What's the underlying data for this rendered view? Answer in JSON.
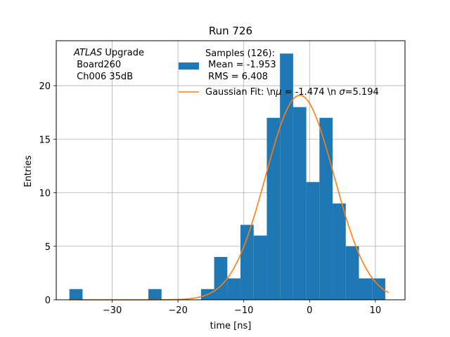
{
  "chart_data": {
    "type": "bar",
    "title": "Run 726",
    "xlabel": "time [ns]",
    "ylabel": "Entries",
    "xlim": [
      -38.5,
      14.5
    ],
    "ylim": [
      0,
      24.2
    ],
    "grid": true,
    "x_ticks": [
      -30,
      -20,
      -10,
      0,
      10
    ],
    "x_tick_labels": [
      "−30",
      "−20",
      "−10",
      "0",
      "10"
    ],
    "y_ticks": [
      0,
      5,
      10,
      15,
      20
    ],
    "y_tick_labels": [
      "0",
      "5",
      "10",
      "15",
      "20"
    ],
    "bin_width": 2.0,
    "bins": [
      {
        "x0": -36.5,
        "count": 1
      },
      {
        "x0": -24.5,
        "count": 1
      },
      {
        "x0": -16.5,
        "count": 1
      },
      {
        "x0": -14.5,
        "count": 1
      },
      {
        "x0": -12.5,
        "count": 2
      },
      {
        "x0": -10.5,
        "count": 7
      },
      {
        "x0": -8.5,
        "count": 6
      },
      {
        "x0": -6.5,
        "count": 17
      },
      {
        "x0": -4.5,
        "count": 23
      },
      {
        "x0": -2.5,
        "count": 18
      },
      {
        "x0": -0.5,
        "count": 11
      },
      {
        "x0": 1.5,
        "count": 17
      },
      {
        "x0": 3.5,
        "count": 9
      },
      {
        "x0": 5.5,
        "count": 5
      },
      {
        "x0": 7.5,
        "count": 2
      },
      {
        "x0": 9.5,
        "count": 2
      }
    ],
    "extra_bar": {
      "x0": -14.5,
      "count": 4
    },
    "fit": {
      "mu": -1.474,
      "sigma": 5.194,
      "amplitude": 19.1,
      "x_range": [
        -36.5,
        12.0
      ]
    },
    "legend": {
      "placement": "top-right",
      "samples_line1": "Samples (126):",
      "samples_line2": " Mean = -1.953",
      "samples_line3": " RMS = 6.408",
      "fit_label_prefix": "Gaussian Fit: \\n",
      "fit_label_mu": " = -1.474 \\n ",
      "fit_label_sigma": "=5.194"
    },
    "annotation": {
      "line1_italic": "ATLAS",
      "line1_rest": " Upgrade",
      "line2": " Board260",
      "line3": " Ch006 35dB"
    },
    "colors": {
      "bars": "#1f77b4",
      "fit": "#ff7f0e",
      "grid": "#b0b0b0"
    }
  }
}
